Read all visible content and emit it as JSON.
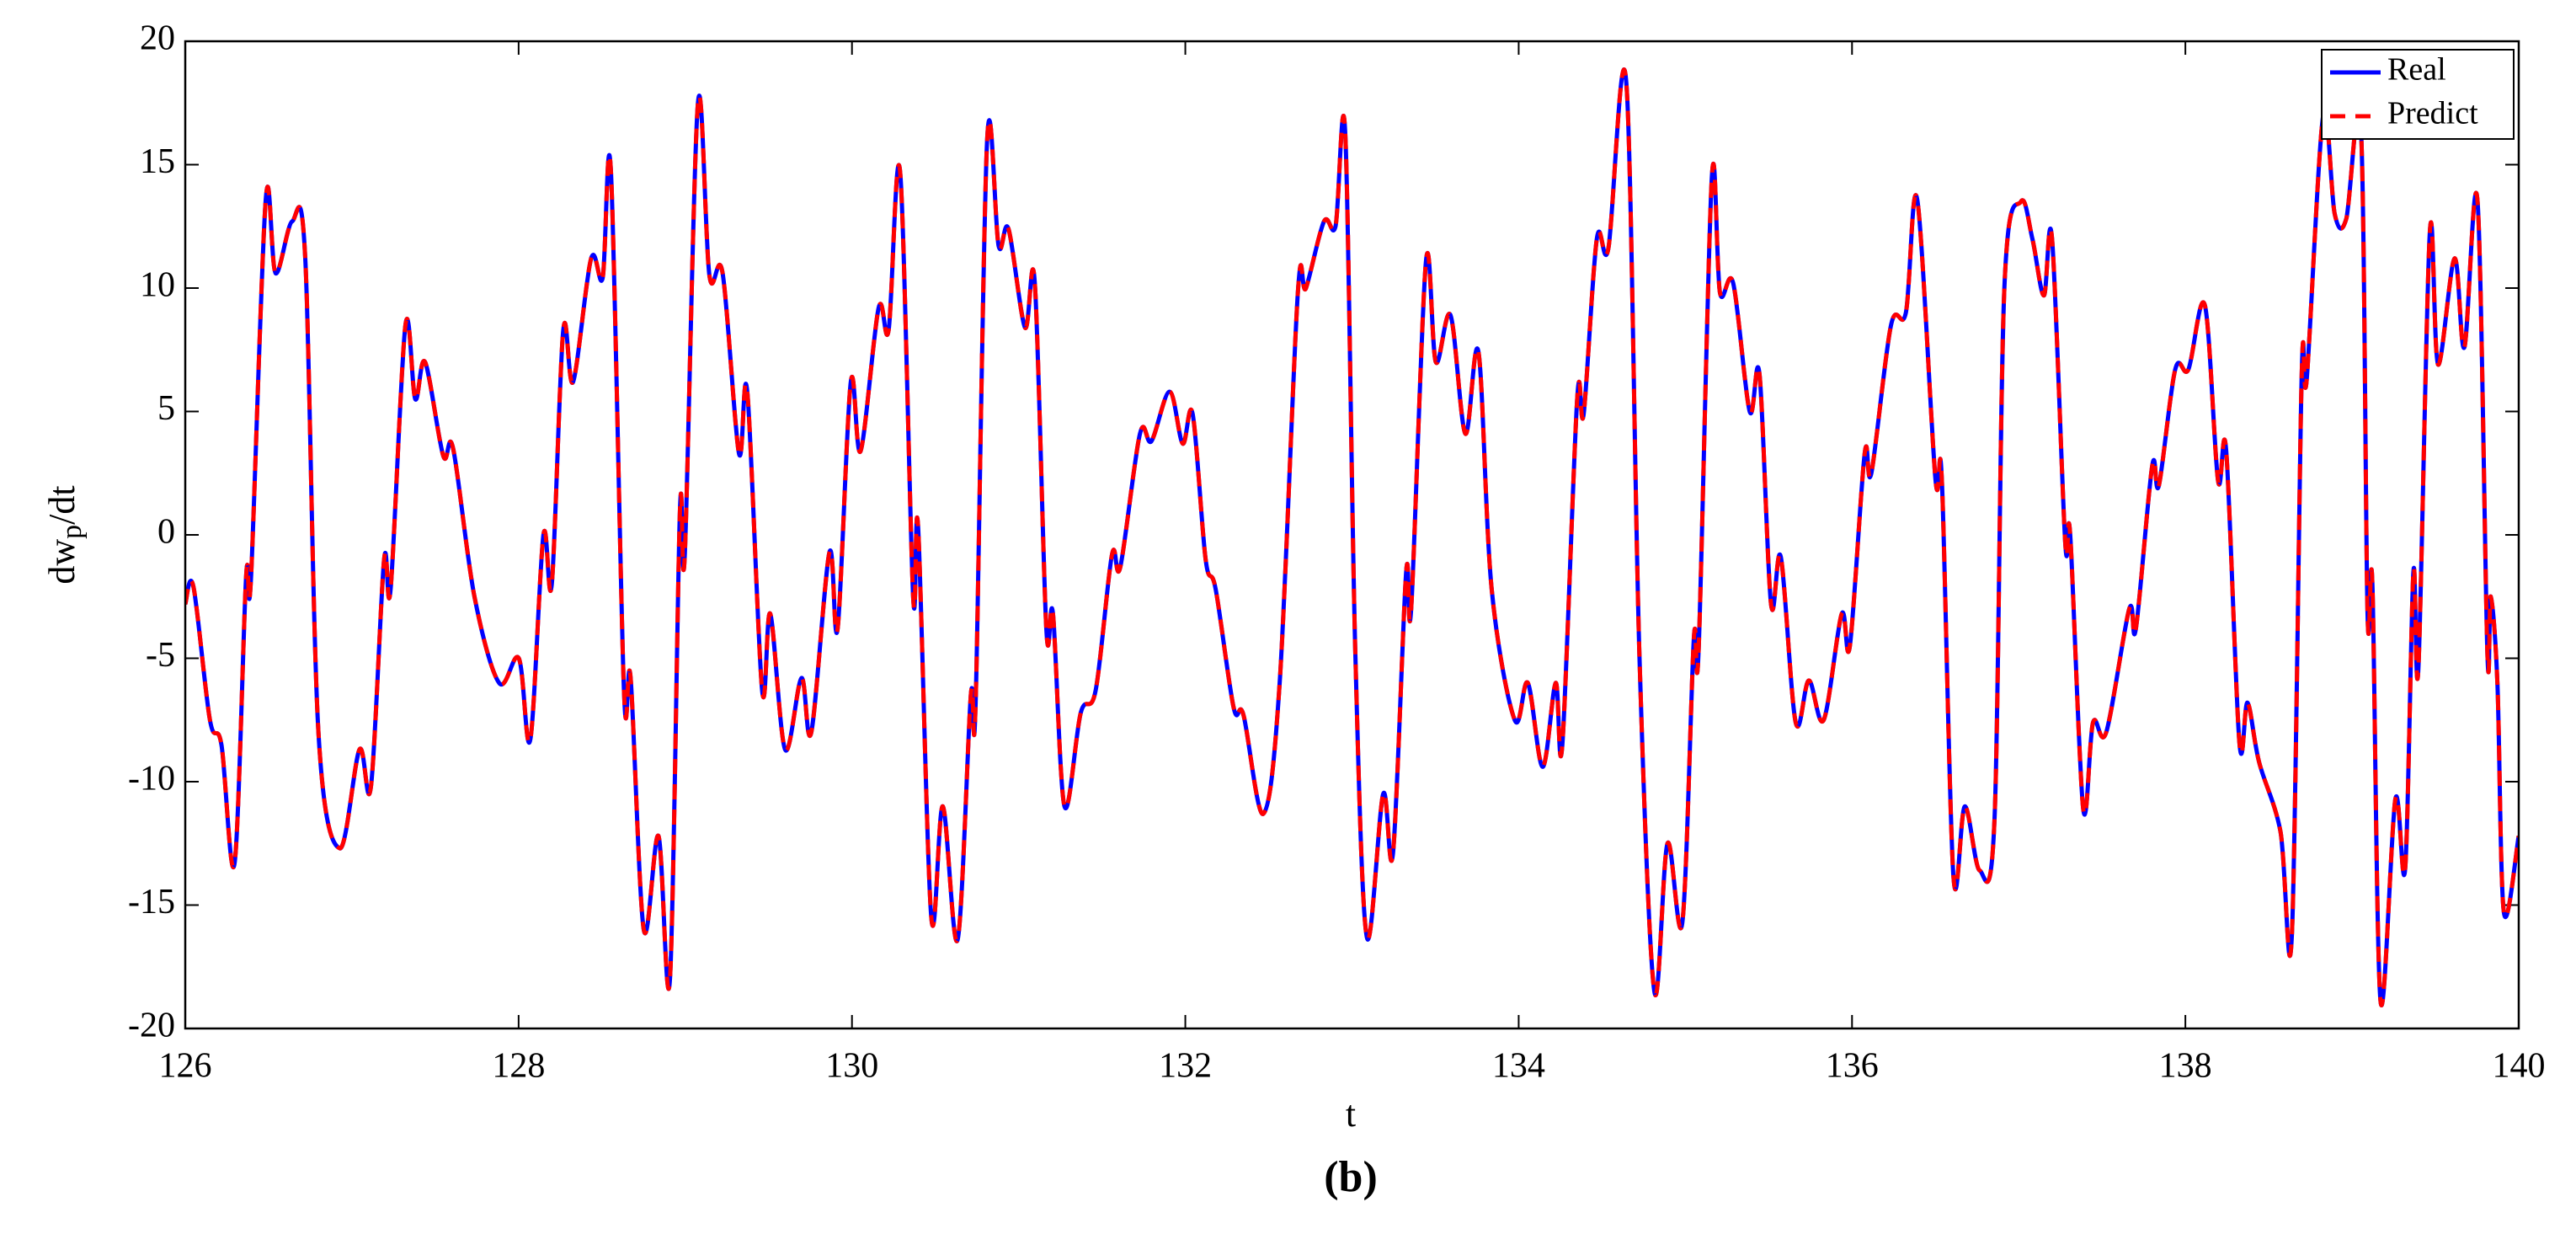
{
  "chart_data": {
    "type": "line",
    "xlabel": "t",
    "ylabel": [
      "dw",
      "p",
      "/dt"
    ],
    "caption": "(b)",
    "xlim": [
      126,
      140
    ],
    "xticks": [
      126,
      128,
      130,
      132,
      134,
      136,
      138,
      140
    ],
    "ylim": [
      -20,
      20
    ],
    "yticks": [
      -20,
      -15,
      -10,
      -5,
      0,
      5,
      10,
      15,
      20
    ],
    "grid": false,
    "legend": "upper right",
    "x": [
      126,
      126.049,
      126.148,
      126.217,
      126.296,
      126.365,
      126.394,
      126.483,
      126.542,
      126.641,
      126.72,
      126.799,
      126.927,
      127.045,
      127.114,
      127.193,
      127.232,
      127.321,
      127.38,
      127.439,
      127.548,
      127.607,
      127.735,
      127.883,
      128.001,
      128.07,
      128.149,
      128.199,
      128.268,
      128.327,
      128.435,
      128.504,
      128.554,
      128.632,
      128.672,
      128.751,
      128.839,
      128.908,
      128.968,
      128.997,
      129.076,
      129.145,
      129.224,
      129.322,
      129.372,
      129.461,
      129.51,
      129.599,
      129.697,
      129.756,
      129.865,
      129.914,
      129.993,
      130.052,
      130.16,
      130.22,
      130.289,
      130.367,
      130.397,
      130.476,
      130.545,
      130.634,
      130.713,
      130.742,
      130.811,
      130.88,
      130.939,
      131.038,
      131.097,
      131.166,
      131.206,
      131.275,
      131.373,
      131.462,
      131.56,
      131.61,
      131.728,
      131.797,
      131.906,
      131.984,
      132.044,
      132.122,
      132.182,
      132.29,
      132.349,
      132.468,
      132.566,
      132.675,
      132.724,
      132.832,
      132.901,
      132.96,
      133.02,
      133.089,
      133.187,
      133.246,
      133.325,
      133.355,
      133.444,
      133.503,
      133.591,
      133.68,
      133.759,
      133.838,
      133.976,
      134.055,
      134.144,
      134.222,
      134.262,
      134.351,
      134.39,
      134.469,
      134.538,
      134.646,
      134.725,
      134.814,
      134.893,
      134.982,
      135.051,
      135.08,
      135.159,
      135.208,
      135.287,
      135.386,
      135.445,
      135.514,
      135.573,
      135.662,
      135.741,
      135.83,
      135.938,
      135.987,
      136.076,
      136.116,
      136.234,
      136.323,
      136.391,
      136.5,
      136.539,
      136.608,
      136.677,
      136.766,
      136.855,
      136.914,
      137.013,
      137.082,
      137.151,
      137.2,
      137.279,
      137.309,
      137.387,
      137.446,
      137.525,
      137.663,
      137.703,
      137.801,
      137.841,
      137.939,
      138.018,
      138.117,
      138.196,
      138.245,
      138.324,
      138.373,
      138.442,
      138.57,
      138.639,
      138.698,
      138.728,
      138.827,
      138.896,
      138.965,
      139.053,
      139.093,
      139.122,
      139.171,
      139.26,
      139.319,
      139.368,
      139.398,
      139.467,
      139.516,
      139.615,
      139.674,
      139.753,
      139.812,
      139.832,
      139.872,
      139.911,
      140
    ],
    "series": [
      {
        "name": "Real",
        "color": "#0000ff",
        "dash": false,
        "values": [
          -2.8,
          -2.1,
          -7.5,
          -8.5,
          -13.3,
          -1.7,
          -1.8,
          13.6,
          10.6,
          12.7,
          11.2,
          -8,
          -12.7,
          -8.7,
          -10.2,
          -1,
          -2.2,
          8.5,
          5.5,
          7,
          3.2,
          3.5,
          -2.5,
          -6,
          -5,
          -8.3,
          0,
          -2,
          8.3,
          6.2,
          11.2,
          10.4,
          14.7,
          -6.3,
          -5.8,
          -16,
          -12.2,
          -18,
          1,
          -0.8,
          17.5,
          10.5,
          10.6,
          3.3,
          5.8,
          -6.3,
          -3.2,
          -8.7,
          -5.8,
          -8,
          -0.7,
          -3.8,
          6.2,
          3.4,
          9.2,
          8.3,
          14.7,
          -2.5,
          0.3,
          -15.5,
          -11,
          -16.4,
          -6.5,
          -6.8,
          16,
          11.7,
          12.4,
          8.4,
          10.2,
          -3.8,
          -3.2,
          -11,
          -7.2,
          -6.3,
          -0.8,
          -1.3,
          4.1,
          3.8,
          5.8,
          3.7,
          4.9,
          -1,
          -2.2,
          -7,
          -7.3,
          -11.3,
          -6,
          9.8,
          10,
          12.7,
          12.5,
          16.2,
          -4.8,
          -16.3,
          -10.5,
          -12.9,
          -1.5,
          -3,
          11.1,
          7,
          8.9,
          4.1,
          7.4,
          -2.2,
          -7.5,
          -6,
          -9.4,
          -6,
          -8.5,
          5.5,
          4.9,
          12,
          11.6,
          18.3,
          -5,
          -18.5,
          -12.5,
          -15.7,
          -4.2,
          -4.6,
          14.5,
          9.8,
          10.2,
          5,
          6.5,
          -2.8,
          -0.9,
          -7.6,
          -5.9,
          -7.5,
          -3.2,
          -4.5,
          3.3,
          2.5,
          8.5,
          9,
          13.6,
          2.3,
          2.2,
          -13.8,
          -11,
          -13.6,
          -11.5,
          10,
          13.5,
          12,
          9.7,
          12,
          -0.3,
          0,
          -11.1,
          -7.6,
          -8,
          -3,
          -3.8,
          2.8,
          2,
          6.7,
          6.7,
          9.3,
          2.2,
          3.4,
          -8.4,
          -6.8,
          -9.2,
          -12,
          -16.2,
          6.5,
          6.3,
          17,
          13,
          12.8,
          16.5,
          -3.2,
          -2,
          -18.9,
          -10.7,
          -13.5,
          -1.5,
          -5.4,
          12.3,
          6.9,
          11.2,
          7.6,
          13.5,
          -4.8,
          -2.5,
          -6,
          -15.3,
          -12.2
        ]
      },
      {
        "name": "Predict",
        "color": "#ff0000",
        "dash": true,
        "values": [
          -2.8,
          -2.1,
          -7.5,
          -8.5,
          -13.3,
          -1.7,
          -1.8,
          13.6,
          10.6,
          12.7,
          11.2,
          -8,
          -12.7,
          -8.7,
          -10.2,
          -1,
          -2.2,
          8.5,
          5.5,
          7,
          3.2,
          3.5,
          -2.5,
          -6,
          -5,
          -8.3,
          0,
          -2,
          8.3,
          6.2,
          11.2,
          10.4,
          14.7,
          -6.3,
          -5.8,
          -16,
          -12.2,
          -18,
          1,
          -0.8,
          17.5,
          10.5,
          10.6,
          3.3,
          5.8,
          -6.3,
          -3.2,
          -8.7,
          -5.8,
          -8,
          -0.7,
          -3.8,
          6.2,
          3.4,
          9.2,
          8.3,
          14.7,
          -2.5,
          0.3,
          -15.5,
          -11,
          -16.4,
          -6.5,
          -6.8,
          16,
          11.7,
          12.4,
          8.4,
          10.2,
          -3.8,
          -3.2,
          -11,
          -7.2,
          -6.3,
          -0.8,
          -1.3,
          4.1,
          3.8,
          5.8,
          3.7,
          4.9,
          -1,
          -2.2,
          -7,
          -7.3,
          -11.3,
          -6,
          9.8,
          10,
          12.7,
          12.5,
          16.2,
          -4.8,
          -16.3,
          -10.5,
          -12.9,
          -1.5,
          -3,
          11.1,
          7,
          8.9,
          4.1,
          7.4,
          -2.2,
          -7.5,
          -6,
          -9.4,
          -6,
          -8.5,
          5.5,
          4.9,
          12,
          11.6,
          18.3,
          -5,
          -18.5,
          -12.5,
          -15.7,
          -4.2,
          -4.6,
          14.5,
          9.8,
          10.2,
          5,
          6.5,
          -2.8,
          -0.9,
          -7.6,
          -5.9,
          -7.5,
          -3.2,
          -4.5,
          3.3,
          2.5,
          8.5,
          9,
          13.6,
          2.3,
          2.2,
          -13.8,
          -11,
          -13.6,
          -11.5,
          10,
          13.5,
          12,
          9.7,
          12,
          -0.3,
          0,
          -11.1,
          -7.6,
          -8,
          -3,
          -3.8,
          2.8,
          2,
          6.7,
          6.7,
          9.3,
          2.2,
          3.4,
          -8.4,
          -6.8,
          -9.2,
          -12,
          -16.2,
          6.5,
          6.3,
          17,
          13,
          12.8,
          16.5,
          -3.2,
          -2,
          -18.9,
          -10.7,
          -13.5,
          -1.5,
          -5.4,
          12.3,
          6.9,
          11.2,
          7.6,
          13.5,
          -4.8,
          -2.5,
          -6,
          -15.3,
          -12.2
        ]
      }
    ]
  }
}
